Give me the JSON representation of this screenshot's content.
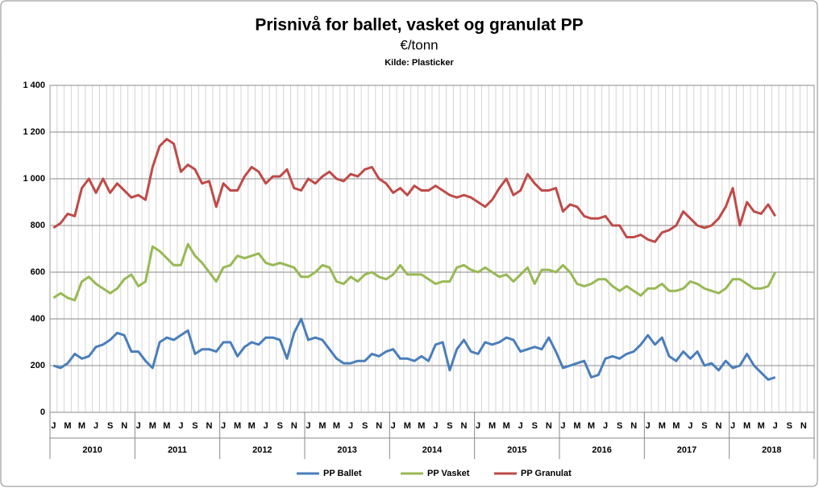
{
  "chart_data": {
    "type": "line",
    "title": "Prisnivå for ballet, vasket og granulat PP",
    "subtitle": "€/tonn",
    "source": "Kilde: Plasticker",
    "categories": [
      "J",
      null,
      "M",
      null,
      "M",
      null,
      "J",
      null,
      "S",
      null,
      "N",
      null,
      "J",
      null,
      "M",
      null,
      "M",
      null,
      "J",
      null,
      "S",
      null,
      "N",
      null,
      "J",
      null,
      "M",
      null,
      "M",
      null,
      "J",
      null,
      "S",
      null,
      "N",
      null,
      "J",
      null,
      "M",
      null,
      "M",
      null,
      "J",
      null,
      "S",
      null,
      "N",
      null,
      "J",
      null,
      "M",
      null,
      "M",
      null,
      "J",
      null,
      "S",
      null,
      "N",
      null,
      "J",
      null,
      "M",
      null,
      "M",
      null,
      "J",
      null,
      "S",
      null,
      "N",
      null,
      "J",
      null,
      "M",
      null,
      "M",
      null,
      "J",
      null,
      "S",
      null,
      "N",
      null,
      "J",
      null,
      "M",
      null,
      "M",
      null,
      "J",
      null,
      "S",
      null,
      "N",
      null,
      "J",
      null,
      "M",
      null,
      "M",
      null,
      "J",
      null,
      "S",
      null,
      "N",
      null
    ],
    "years": [
      "2010",
      "2011",
      "2012",
      "2013",
      "2014",
      "2015",
      "2016",
      "2017",
      "2018"
    ],
    "series": [
      {
        "name": "PP Ballet",
        "color": "#4a7ebb",
        "values": [
          200,
          190,
          210,
          250,
          230,
          240,
          280,
          290,
          310,
          340,
          330,
          260,
          260,
          220,
          190,
          300,
          320,
          310,
          330,
          350,
          250,
          270,
          270,
          260,
          300,
          300,
          240,
          280,
          300,
          290,
          320,
          320,
          310,
          230,
          340,
          400,
          310,
          320,
          310,
          270,
          230,
          210,
          210,
          220,
          220,
          250,
          240,
          260,
          270,
          230,
          230,
          220,
          240,
          220,
          290,
          300,
          180,
          270,
          310,
          260,
          250,
          300,
          290,
          300,
          320,
          310,
          260,
          270,
          280,
          270,
          320,
          260,
          190,
          200,
          210,
          220,
          150,
          160,
          230,
          240,
          230,
          250,
          260,
          290,
          330,
          290,
          320,
          240,
          220,
          260,
          230,
          260,
          200,
          210,
          180,
          220,
          190,
          200,
          250,
          200,
          170,
          140,
          150,
          null,
          null,
          null,
          null,
          null
        ]
      },
      {
        "name": "PP Vasket",
        "color": "#98b954",
        "values": [
          490,
          510,
          490,
          480,
          560,
          580,
          550,
          530,
          510,
          530,
          570,
          590,
          540,
          560,
          710,
          690,
          660,
          630,
          630,
          720,
          670,
          640,
          600,
          560,
          620,
          630,
          670,
          660,
          670,
          680,
          640,
          630,
          640,
          630,
          620,
          580,
          580,
          600,
          630,
          620,
          560,
          550,
          580,
          560,
          590,
          600,
          580,
          570,
          590,
          630,
          590,
          590,
          590,
          570,
          550,
          560,
          560,
          620,
          630,
          610,
          600,
          620,
          600,
          580,
          590,
          560,
          590,
          620,
          550,
          610,
          610,
          600,
          630,
          600,
          550,
          540,
          550,
          570,
          570,
          540,
          520,
          540,
          520,
          500,
          530,
          530,
          550,
          520,
          520,
          530,
          560,
          550,
          530,
          520,
          510,
          530,
          570,
          570,
          550,
          530,
          530,
          540,
          600,
          null,
          null,
          null,
          null,
          null
        ]
      },
      {
        "name": "PP Granulat",
        "color": "#be4b48",
        "values": [
          790,
          810,
          850,
          840,
          960,
          1000,
          940,
          1000,
          940,
          980,
          950,
          920,
          930,
          910,
          1050,
          1140,
          1170,
          1150,
          1030,
          1060,
          1040,
          980,
          990,
          880,
          980,
          950,
          950,
          1010,
          1050,
          1030,
          980,
          1010,
          1010,
          1040,
          960,
          950,
          1000,
          980,
          1010,
          1030,
          1000,
          990,
          1020,
          1010,
          1040,
          1050,
          1000,
          980,
          940,
          960,
          930,
          970,
          950,
          950,
          970,
          950,
          930,
          920,
          930,
          920,
          900,
          880,
          910,
          960,
          1000,
          930,
          950,
          1020,
          980,
          950,
          950,
          960,
          860,
          890,
          880,
          840,
          830,
          830,
          840,
          800,
          800,
          750,
          750,
          760,
          740,
          730,
          770,
          780,
          800,
          860,
          830,
          800,
          790,
          800,
          830,
          880,
          960,
          800,
          900,
          860,
          850,
          890,
          840,
          null,
          null,
          null,
          null,
          null
        ]
      }
    ],
    "ylim": [
      0,
      1400
    ],
    "yticks": [
      0,
      200,
      400,
      600,
      800,
      {
        "value": 1000,
        "label": "1 000"
      },
      {
        "value": 1200,
        "label": "1 200"
      },
      {
        "value": 1400,
        "label": "1 400"
      }
    ],
    "grid": true,
    "legend": "bottom"
  }
}
